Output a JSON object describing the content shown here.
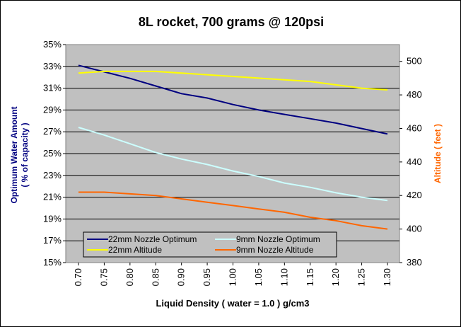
{
  "chart_data": {
    "type": "line",
    "title": "8L rocket, 700 grams @ 120psi",
    "xlabel": "Liquid Density ( water = 1.0 ) g/cm3",
    "ylabel_left_line1": "Optimum Water Amount",
    "ylabel_left_line2": "( % of capacity )",
    "ylabel_right": "Altitude ( feet )",
    "x": [
      "0.70",
      "0.75",
      "0.80",
      "0.85",
      "0.90",
      "0.95",
      "1.00",
      "1.05",
      "1.10",
      "1.15",
      "1.20",
      "1.25",
      "1.30"
    ],
    "ylim_left": [
      15,
      35
    ],
    "ylim_right": [
      380,
      510
    ],
    "yticks_left": [
      "15%",
      "17%",
      "19%",
      "21%",
      "23%",
      "25%",
      "27%",
      "29%",
      "31%",
      "33%",
      "35%"
    ],
    "yticks_right": [
      "380",
      "400",
      "420",
      "440",
      "460",
      "480",
      "500"
    ],
    "grid": "horizontal",
    "legend_position": "bottom-left",
    "series": [
      {
        "name": "22mm Nozzle Optimum",
        "axis": "left",
        "color": "#000080",
        "values": [
          33.1,
          32.5,
          31.9,
          31.2,
          30.5,
          30.1,
          29.5,
          29.0,
          28.6,
          28.2,
          27.8,
          27.3,
          26.8
        ]
      },
      {
        "name": "9mm Nozzle Optimum",
        "axis": "left",
        "color": "#CCFFFF",
        "values": [
          27.4,
          26.7,
          25.9,
          25.1,
          24.5,
          24.0,
          23.4,
          22.9,
          22.3,
          21.9,
          21.4,
          21.0,
          20.7
        ]
      },
      {
        "name": "22mm Altitude",
        "axis": "right",
        "color": "#FFFF00",
        "values": [
          493,
          494,
          494,
          494,
          493,
          492,
          491,
          490,
          489,
          488,
          486,
          484,
          483
        ]
      },
      {
        "name": "9mm Nozzle Altitude",
        "axis": "right",
        "color": "#FF6600",
        "values": [
          422,
          422,
          421,
          420,
          418,
          416,
          414,
          412,
          410,
          407,
          405,
          402,
          400
        ]
      }
    ]
  }
}
